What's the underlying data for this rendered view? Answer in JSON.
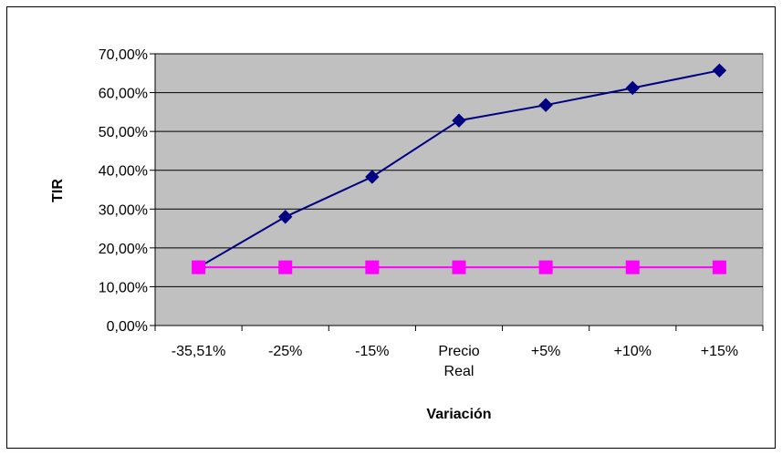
{
  "chart_data": {
    "type": "line",
    "title": "",
    "xlabel": "Variación",
    "ylabel": "TIR",
    "categories": [
      "-35,51%",
      "-25%",
      "-15%",
      "Precio Real",
      "+5%",
      "+10%",
      "+15%"
    ],
    "category_lines": [
      [
        "-35,51%"
      ],
      [
        "-25%"
      ],
      [
        "-15%"
      ],
      [
        "Precio",
        "Real"
      ],
      [
        "+5%"
      ],
      [
        "+10%"
      ],
      [
        "+15%"
      ]
    ],
    "ylim": [
      0,
      70
    ],
    "yticks": [
      0,
      10,
      20,
      30,
      40,
      50,
      60,
      70
    ],
    "ytick_labels": [
      "0,00%",
      "10,00%",
      "20,00%",
      "30,00%",
      "40,00%",
      "50,00%",
      "60,00%",
      "70,00%"
    ],
    "grid": true,
    "legend": "none",
    "series": [
      {
        "values": [
          15.0,
          28.0,
          38.3,
          52.8,
          56.8,
          61.2,
          65.7
        ],
        "color": "#000080",
        "marker": "diamond",
        "marker_color": "#000080"
      },
      {
        "values": [
          15.0,
          15.0,
          15.0,
          15.0,
          15.0,
          15.0,
          15.0
        ],
        "color": "#ff00ff",
        "marker": "square",
        "marker_color": "#ff00ff"
      }
    ],
    "plot_background": "#c0c0c0",
    "gridline_color": "#000000"
  }
}
